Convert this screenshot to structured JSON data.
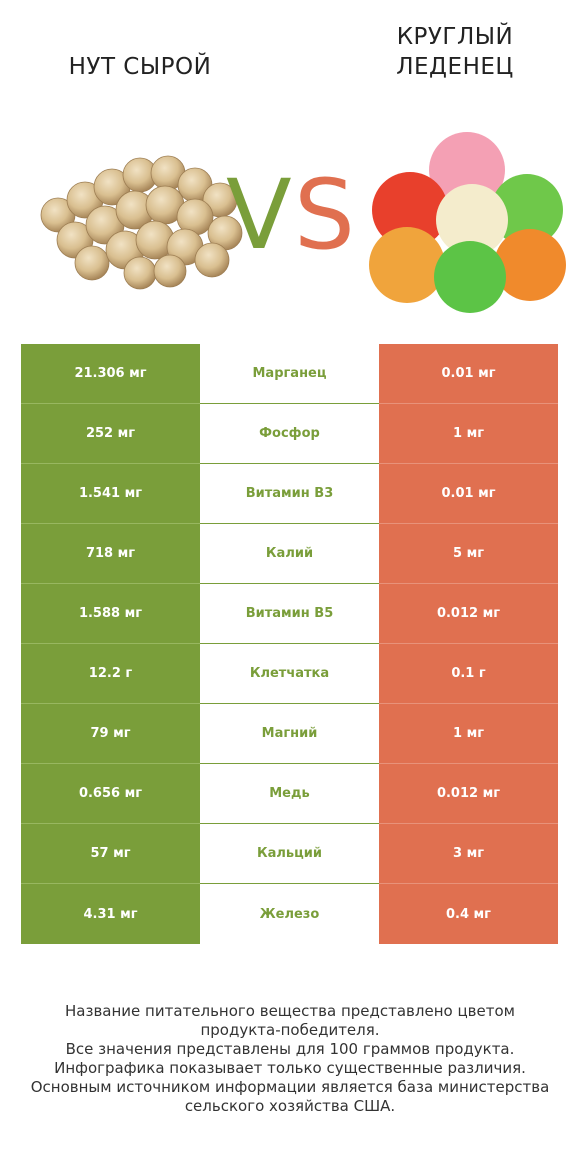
{
  "left_product": {
    "name": "НУТ СЫРОЙ",
    "image_icon": "chickpea-pile-icon",
    "color": "#7a9e3a"
  },
  "right_product": {
    "name_line1": "КРУГЛЫЙ",
    "name_line2": "ЛЕДЕНЕЦ",
    "image_icon": "gumdrop-candies-icon",
    "color": "#e07050"
  },
  "vs": {
    "v": "V",
    "s": "S"
  },
  "rows": [
    {
      "left": "21.306 мг",
      "nutrient": "Марганец",
      "right": "0.01 мг"
    },
    {
      "left": "252 мг",
      "nutrient": "Фосфор",
      "right": "1 мг"
    },
    {
      "left": "1.541 мг",
      "nutrient": "Витамин B3",
      "right": "0.01 мг"
    },
    {
      "left": "718 мг",
      "nutrient": "Калий",
      "right": "5 мг"
    },
    {
      "left": "1.588 мг",
      "nutrient": "Витамин B5",
      "right": "0.012 мг"
    },
    {
      "left": "12.2 г",
      "nutrient": "Клетчатка",
      "right": "0.1 г"
    },
    {
      "left": "79 мг",
      "nutrient": "Магний",
      "right": "1 мг"
    },
    {
      "left": "0.656 мг",
      "nutrient": "Медь",
      "right": "0.012 мг"
    },
    {
      "left": "57 мг",
      "nutrient": "Кальций",
      "right": "3 мг"
    },
    {
      "left": "4.31 мг",
      "nutrient": "Железо",
      "right": "0.4 мг"
    }
  ],
  "footnote": [
    "Название питательного вещества представлено цветом",
    "продукта-победителя.",
    "Все значения представлены для 100 граммов продукта.",
    "Инфографика показывает только существенные различия.",
    "Основным источником информации является база министерства",
    "сельского хозяйства США."
  ]
}
